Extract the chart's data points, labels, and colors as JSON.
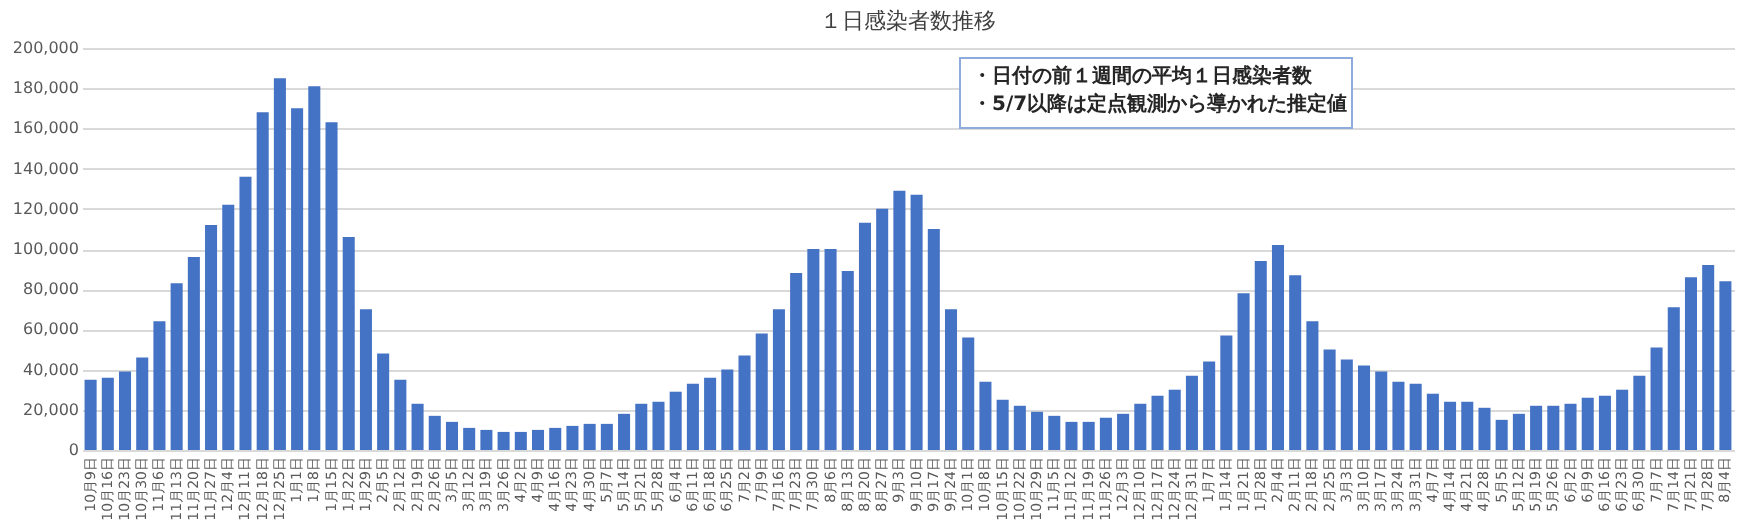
{
  "chart_data": {
    "type": "bar",
    "title": "１日感染者数推移",
    "categories": [
      "10月9日",
      "10月16日",
      "10月23日",
      "10月30日",
      "11月6日",
      "11月13日",
      "11月20日",
      "11月27日",
      "12月4日",
      "12月11日",
      "12月18日",
      "12月25日",
      "1月1日",
      "1月8日",
      "1月15日",
      "1月22日",
      "1月29日",
      "2月5日",
      "2月12日",
      "2月19日",
      "2月26日",
      "3月5日",
      "3月12日",
      "3月19日",
      "3月26日",
      "4月2日",
      "4月9日",
      "4月16日",
      "4月23日",
      "4月30日",
      "5月7日",
      "5月14日",
      "5月21日",
      "5月28日",
      "6月4日",
      "6月11日",
      "6月18日",
      "6月25日",
      "7月2日",
      "7月9日",
      "7月16日",
      "7月23日",
      "7月30日",
      "8月6日",
      "8月13日",
      "8月20日",
      "8月27日",
      "9月3日",
      "9月10日",
      "9月17日",
      "9月24日",
      "10月1日",
      "10月8日",
      "10月15日",
      "10月22日",
      "10月29日",
      "11月5日",
      "11月12日",
      "11月19日",
      "11月26日",
      "12月3日",
      "12月10日",
      "12月17日",
      "12月24日",
      "12月31日",
      "1月7日",
      "1月14日",
      "1月21日",
      "1月28日",
      "2月4日",
      "2月11日",
      "2月18日",
      "2月25日",
      "3月3日",
      "3月10日",
      "3月17日",
      "3月24日",
      "3月31日",
      "4月7日",
      "4月14日",
      "4月21日",
      "4月28日",
      "5月5日",
      "5月12日",
      "5月19日",
      "5月26日",
      "6月2日",
      "6月9日",
      "6月16日",
      "6月23日",
      "6月30日",
      "7月7日",
      "7月14日",
      "7月21日",
      "7月28日",
      "8月4日"
    ],
    "values": [
      35000,
      36000,
      39000,
      46000,
      64000,
      83000,
      96000,
      112000,
      122000,
      136000,
      168000,
      185000,
      170000,
      181000,
      163000,
      106000,
      70000,
      48000,
      35000,
      23000,
      17000,
      14000,
      11000,
      10000,
      9000,
      9000,
      10000,
      11000,
      12000,
      13000,
      13000,
      18000,
      23000,
      24000,
      29000,
      33000,
      36000,
      40000,
      47000,
      58000,
      70000,
      88000,
      100000,
      100000,
      89000,
      113000,
      120000,
      129000,
      127000,
      110000,
      70000,
      56000,
      34000,
      25000,
      22000,
      19000,
      17000,
      14000,
      14000,
      16000,
      18000,
      23000,
      27000,
      30000,
      37000,
      44000,
      57000,
      78000,
      94000,
      102000,
      87000,
      64000,
      50000,
      45000,
      42000,
      39000,
      34000,
      33000,
      28000,
      24000,
      24000,
      21000,
      15000,
      18000,
      22000,
      22000,
      23000,
      26000,
      27000,
      30000,
      37000,
      51000,
      71000,
      86000,
      92000,
      84000
    ],
    "color": "#4472c4",
    "ylim": [
      0,
      200000
    ],
    "yticks": [
      0,
      {
        "value": 20000,
        "label": "20,000"
      },
      {
        "value": 40000,
        "label": "40,000"
      },
      {
        "value": 60000,
        "label": "60,000"
      },
      {
        "value": 80000,
        "label": "80,000"
      },
      {
        "value": 100000,
        "label": "100,000"
      },
      {
        "value": 120000,
        "label": "120,000"
      },
      {
        "value": 140000,
        "label": "140,000"
      },
      {
        "value": 160000,
        "label": "160,000"
      },
      {
        "value": 180000,
        "label": "180,000"
      },
      {
        "value": 200000,
        "label": "200,000"
      }
    ],
    "grid": "y",
    "annotations": [
      "・日付の前１週間の平均１日感染者数",
      "・5/7以降は定点観測から導かれた推定値"
    ]
  }
}
